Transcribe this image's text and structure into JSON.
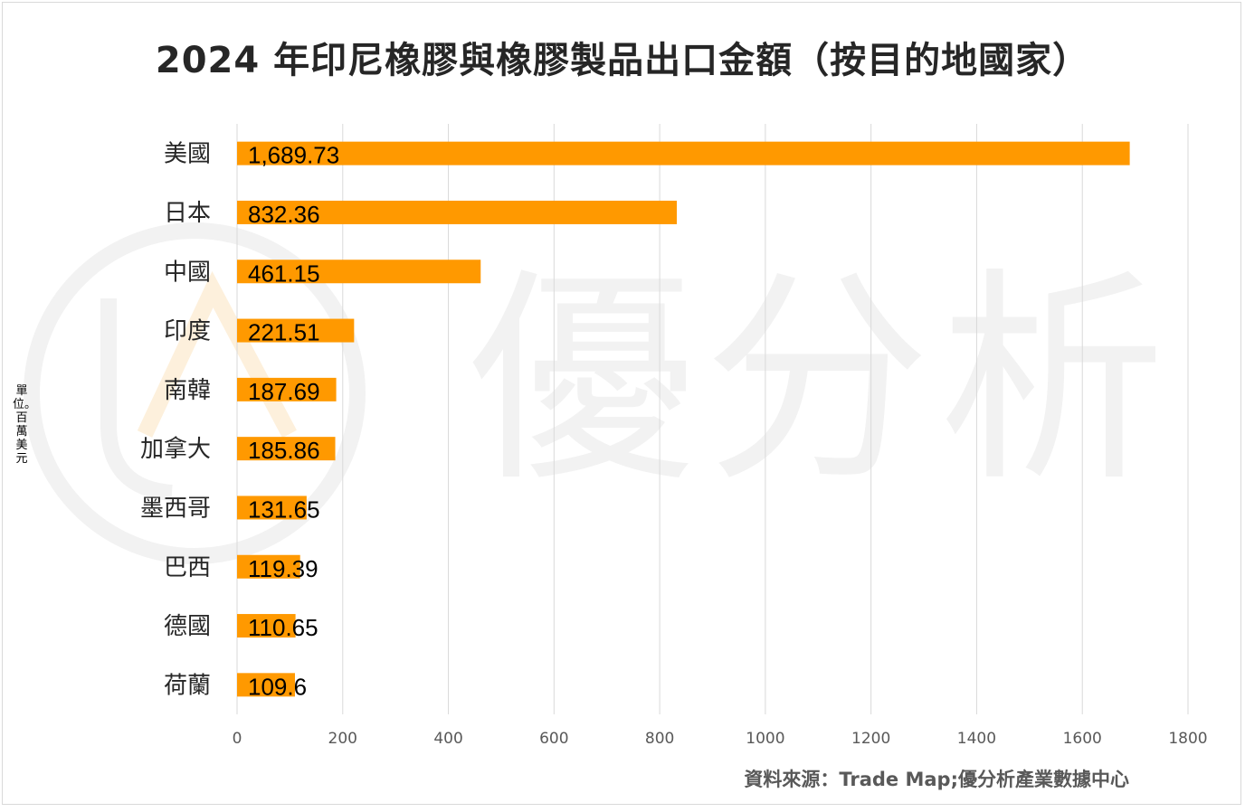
{
  "title": "2024 年印尼橡膠與橡膠製品出口金額（按目的地國家）",
  "source": "資料來源：Trade Map;優分析產業數據中心",
  "unit_label": "單位。百萬美元",
  "watermark": {
    "text": "優分析"
  },
  "colors": {
    "bar": "#ff9900",
    "grid": "#d9d9d9",
    "label": "#000000",
    "axis_text": "#595959",
    "watermark": "#f2f2f2"
  },
  "chart_data": {
    "type": "bar",
    "orientation": "horizontal",
    "categories": [
      "美國",
      "日本",
      "中國",
      "印度",
      "南韓",
      "加拿大",
      "墨西哥",
      "巴西",
      "德國",
      "荷蘭"
    ],
    "values": [
      1689.73,
      832.36,
      461.15,
      221.51,
      187.69,
      185.86,
      131.65,
      119.39,
      110.65,
      109.6
    ],
    "data_labels": [
      "1,689.73",
      "832.36",
      "461.15",
      "221.51",
      "187.69",
      "185.86",
      "131.65",
      "119.39",
      "110.65",
      "109.6"
    ],
    "xlim": [
      0,
      1800
    ],
    "x_ticks": [
      "0",
      "200",
      "400",
      "600",
      "800",
      "1000",
      "1200",
      "1400",
      "1600",
      "1800"
    ],
    "grid": true,
    "legend": "none"
  }
}
